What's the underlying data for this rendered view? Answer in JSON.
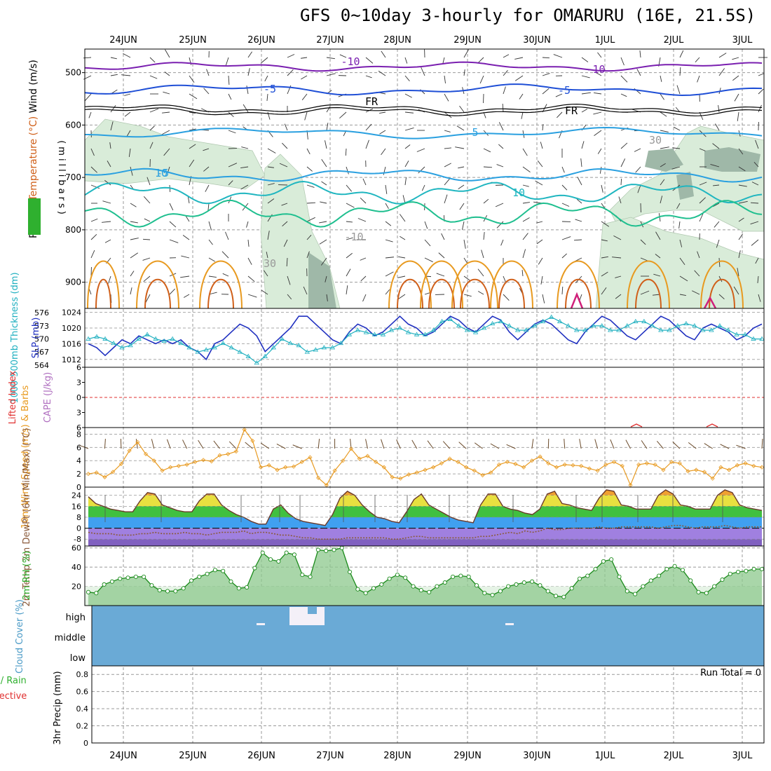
{
  "title": "GFS 0~10day 3-hourly for OMARURU (16E, 21.5S)",
  "colors": {
    "purple": "#7a1fb0",
    "blue": "#1f4fd6",
    "skyblue": "#2aa0e0",
    "cyan": "#20b6c0",
    "teal": "#1fbf8f",
    "orange": "#e89a20",
    "darkorange": "#d0601a",
    "magenta": "#d0207a",
    "rh_green": "#2fb02f",
    "cloud_blue": "#6aaad6",
    "dewpt_brown": "#8a5a3a",
    "lifted_red": "#e03030",
    "cape_violet": "#b070c0"
  },
  "chart_data": [
    {
      "id": "upper-air",
      "type": "contour",
      "ylabel_parts": [
        "Wind (m/s)",
        "Temperature (°C)",
        "RH (%)"
      ],
      "ylabel_axis": "(millibars)",
      "x": [
        "24JUN",
        "25JUN",
        "26JUN",
        "27JUN",
        "28JUN",
        "29JUN",
        "30JUN",
        "1JUL",
        "2JUL",
        "3JUL"
      ],
      "yticks": [
        500,
        600,
        700,
        800,
        900
      ],
      "ylim": [
        455,
        950
      ],
      "contour_labels": [
        "-10",
        "-10",
        "-5",
        "-5",
        "FR",
        "FR",
        "-5",
        "5",
        "10",
        "10",
        "-10",
        "30",
        "30"
      ]
    },
    {
      "id": "slp-thickness",
      "type": "line",
      "ylabel_left": "1000-500mb Thickness (dm)",
      "ylabel_right": "SLP (mb)",
      "yticks_left": [
        "576",
        "573",
        "570",
        "567",
        "564"
      ],
      "yticks_right": [
        "1024",
        "1020",
        "1016",
        "1012"
      ],
      "series": [
        {
          "name": "SLP (mb)",
          "values": [
            1016,
            1015,
            1013,
            1015,
            1017,
            1016,
            1018,
            1017,
            1016,
            1017,
            1016,
            1017,
            1015,
            1014,
            1012,
            1016,
            1017,
            1019,
            1021,
            1020,
            1018,
            1014,
            1016,
            1018,
            1020,
            1023,
            1023,
            1021,
            1019,
            1017,
            1016,
            1019,
            1021,
            1020,
            1018,
            1019,
            1021,
            1023,
            1021,
            1020,
            1018,
            1019,
            1021,
            1023,
            1022,
            1020,
            1019,
            1021,
            1023,
            1022,
            1019,
            1017,
            1019,
            1021,
            1022,
            1021,
            1019,
            1017,
            1016,
            1019,
            1021,
            1023,
            1022,
            1020,
            1018,
            1017,
            1019,
            1021,
            1023,
            1022,
            1020,
            1018,
            1017,
            1020,
            1021,
            1020,
            1019,
            1017,
            1018,
            1020,
            1021
          ]
        },
        {
          "name": "1000-500mb Thickness (dm)",
          "values": [
            570,
            570.5,
            570,
            569,
            568,
            568.5,
            570,
            571,
            570,
            569.5,
            570,
            569,
            568,
            567,
            567.5,
            568,
            569,
            568,
            567,
            566,
            564.5,
            566,
            568,
            570,
            569,
            568.5,
            567,
            567.5,
            568,
            568,
            569,
            571,
            572,
            571.5,
            571,
            571,
            572,
            572.5,
            571.5,
            571,
            571,
            572,
            574,
            574.5,
            573,
            572,
            571.5,
            572.5,
            573.5,
            574,
            573,
            572,
            572,
            573,
            574,
            575,
            574,
            573,
            572,
            572,
            573,
            573,
            572,
            572,
            573,
            574,
            574,
            573,
            572,
            572,
            573,
            573.5,
            573,
            572,
            572,
            573,
            572,
            571,
            571,
            570,
            570
          ]
        }
      ]
    },
    {
      "id": "lifted-cape",
      "type": "line",
      "ylabel_left": "Lifted Index",
      "ylabel_right": "CAPE (J/kg)",
      "yticks": [
        "6",
        "3",
        "0",
        "3",
        "6"
      ],
      "ylim": [
        -6,
        6
      ]
    },
    {
      "id": "wind10m",
      "type": "line",
      "ylabel": "10m Wind Speed (m/s) & Barbs",
      "yticks": [
        "8",
        "6",
        "4",
        "2",
        "0"
      ],
      "ylim": [
        0,
        9
      ],
      "series": [
        {
          "name": "Speed",
          "values": [
            2.0,
            2.2,
            1.5,
            2.3,
            3.5,
            5.5,
            6.8,
            5.0,
            4.0,
            2.5,
            3.0,
            3.2,
            3.4,
            3.8,
            4.1,
            3.9,
            4.8,
            5.0,
            5.4,
            8.7,
            7.0,
            3.0,
            3.3,
            2.6,
            3.0,
            3.1,
            3.8,
            4.5,
            1.4,
            0.3,
            2.5,
            4.0,
            5.8,
            4.3,
            4.7,
            3.8,
            3.0,
            1.5,
            1.3,
            1.9,
            2.2,
            2.6,
            3.0,
            3.6,
            4.3,
            3.8,
            3.0,
            2.5,
            1.8,
            2.2,
            3.4,
            3.8,
            3.5,
            3.0,
            4.0,
            4.6,
            3.6,
            3.0,
            3.4,
            3.3,
            3.2,
            2.8,
            2.5,
            3.4,
            3.8,
            3.2,
            0.3,
            3.4,
            3.6,
            3.4,
            2.6,
            3.8,
            3.6,
            2.4,
            2.6,
            2.3,
            1.3,
            3.0,
            2.6,
            3.3,
            3.6,
            3.2,
            3.0
          ]
        }
      ]
    },
    {
      "id": "temp2m",
      "type": "area",
      "ylabel": "2m Temp 2m DewPt (6hr Min/Max) (°C)",
      "yticks": [
        "24",
        "16",
        "8",
        "0",
        "-8"
      ],
      "ylim": [
        -13,
        30
      ],
      "series": [
        {
          "name": "2m Temp",
          "values": [
            23,
            18,
            16,
            14,
            13,
            12,
            12,
            20,
            26,
            25,
            17,
            15,
            13,
            12,
            12,
            20,
            25,
            25,
            17,
            13,
            10,
            8,
            5,
            3,
            3,
            14,
            17,
            11,
            7,
            5,
            4,
            3,
            2,
            10,
            22,
            27,
            24,
            17,
            12,
            8,
            7,
            5,
            4,
            12,
            21,
            25,
            17,
            14,
            11,
            8,
            6,
            5,
            4,
            17,
            25,
            25,
            16,
            14,
            13,
            11,
            10,
            14,
            25,
            27,
            18,
            17,
            15,
            14,
            13,
            22,
            28,
            27,
            17,
            16,
            14,
            14,
            14,
            24,
            28,
            25,
            17,
            16,
            14,
            14,
            14,
            24,
            28,
            26,
            17,
            15,
            14,
            13
          ]
        },
        {
          "name": "2m DewPt",
          "values": [
            -3,
            -4,
            -4,
            -4,
            -5,
            -5,
            -5,
            -4,
            -4,
            -3,
            -4,
            -4,
            -4,
            -3,
            -4,
            -4,
            -5,
            -4,
            -3,
            -3,
            -3,
            -2,
            -4,
            -3,
            -3,
            -4,
            -5,
            -5,
            -6,
            -7,
            -7,
            -8,
            -8,
            -8,
            -8,
            -7,
            -7,
            -7,
            -7,
            -7,
            -7,
            -8,
            -8,
            -7,
            -6,
            -6,
            -7,
            -7,
            -7,
            -7,
            -7,
            -7,
            -7,
            -6,
            -6,
            -5,
            -4,
            -3,
            -4,
            -2,
            -3,
            -2,
            0,
            -1,
            -1,
            0,
            0,
            0,
            0,
            1,
            0,
            0,
            1,
            1,
            1,
            1,
            1,
            0,
            1,
            2,
            2,
            1,
            0,
            1,
            1,
            1,
            2,
            1,
            0,
            1,
            1,
            1
          ]
        }
      ]
    },
    {
      "id": "rh2m",
      "type": "area",
      "ylabel": "2m RH (%)",
      "yticks": [
        "60",
        "40",
        "20"
      ],
      "ylim": [
        0,
        62
      ],
      "series": [
        {
          "name": "2m RH",
          "values": [
            14,
            13,
            22,
            25,
            28,
            29,
            30,
            30,
            21,
            16,
            15,
            15,
            18,
            26,
            30,
            33,
            37,
            36,
            25,
            18,
            19,
            39,
            55,
            48,
            46,
            55,
            53,
            32,
            30,
            58,
            57,
            58,
            60,
            35,
            17,
            13,
            18,
            22,
            28,
            32,
            29,
            20,
            16,
            14,
            20,
            24,
            30,
            31,
            30,
            21,
            13,
            11,
            15,
            20,
            22,
            24,
            25,
            21,
            15,
            10,
            9,
            18,
            28,
            31,
            38,
            46,
            48,
            30,
            15,
            12,
            20,
            26,
            31,
            38,
            41,
            37,
            26,
            14,
            13,
            20,
            27,
            33,
            35,
            36,
            38,
            38
          ]
        }
      ]
    },
    {
      "id": "cloud-cover",
      "type": "heatmap",
      "ylabel": "Cloud Cover (%)",
      "yticks": [
        "high",
        "middle",
        "low"
      ]
    },
    {
      "id": "precip",
      "type": "bar",
      "ylabel_parts": [
        "3hr Precip (mm)",
        "Total / Rain",
        "Convective"
      ],
      "yticks": [
        "0.8",
        "0.6",
        "0.4",
        "0.2",
        "0"
      ],
      "ylim": [
        0,
        0.9
      ],
      "run_total": "Run Total = 0",
      "values": []
    }
  ]
}
